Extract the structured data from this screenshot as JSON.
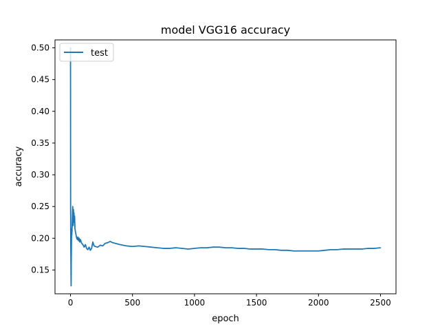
{
  "chart_data": {
    "type": "line",
    "title": "model VGG16 accuracy",
    "xlabel": "epoch",
    "ylabel": "accuracy",
    "xlim": [
      -125,
      2625
    ],
    "ylim": [
      0.1125,
      0.5125
    ],
    "xticks": [
      0,
      500,
      1000,
      1500,
      2000,
      2500
    ],
    "yticks": [
      0.15,
      0.2,
      0.25,
      0.3,
      0.35,
      0.4,
      0.45,
      0.5
    ],
    "ytick_decimals": 2,
    "grid": false,
    "legend_position": "top-left",
    "series": [
      {
        "name": "test",
        "color": "#1f77b4",
        "x": [
          0,
          1,
          2,
          3,
          4,
          5,
          6,
          7,
          8,
          9,
          10,
          12,
          14,
          16,
          18,
          20,
          22,
          24,
          26,
          28,
          30,
          33,
          36,
          40,
          45,
          50,
          55,
          60,
          65,
          70,
          75,
          80,
          90,
          100,
          110,
          120,
          130,
          140,
          150,
          160,
          170,
          180,
          190,
          200,
          220,
          240,
          260,
          280,
          300,
          320,
          340,
          360,
          380,
          400,
          450,
          500,
          550,
          600,
          650,
          700,
          750,
          800,
          850,
          900,
          950,
          1000,
          1050,
          1100,
          1150,
          1200,
          1250,
          1300,
          1350,
          1400,
          1450,
          1500,
          1550,
          1600,
          1650,
          1700,
          1750,
          1800,
          1850,
          1900,
          1950,
          2000,
          2050,
          2100,
          2150,
          2200,
          2250,
          2300,
          2350,
          2400,
          2450,
          2499
        ],
        "y": [
          0.5,
          0.25,
          0.19,
          0.17,
          0.14,
          0.125,
          0.16,
          0.18,
          0.2,
          0.215,
          0.205,
          0.21,
          0.225,
          0.24,
          0.25,
          0.235,
          0.22,
          0.245,
          0.23,
          0.24,
          0.225,
          0.235,
          0.215,
          0.21,
          0.205,
          0.2,
          0.198,
          0.202,
          0.196,
          0.2,
          0.194,
          0.198,
          0.192,
          0.19,
          0.186,
          0.19,
          0.184,
          0.182,
          0.186,
          0.181,
          0.184,
          0.194,
          0.188,
          0.187,
          0.186,
          0.189,
          0.188,
          0.192,
          0.193,
          0.195,
          0.193,
          0.192,
          0.191,
          0.19,
          0.188,
          0.187,
          0.188,
          0.187,
          0.186,
          0.185,
          0.184,
          0.184,
          0.185,
          0.184,
          0.183,
          0.184,
          0.185,
          0.185,
          0.186,
          0.186,
          0.185,
          0.185,
          0.184,
          0.184,
          0.183,
          0.183,
          0.183,
          0.182,
          0.182,
          0.181,
          0.181,
          0.18,
          0.18,
          0.18,
          0.18,
          0.18,
          0.181,
          0.182,
          0.182,
          0.183,
          0.183,
          0.183,
          0.183,
          0.184,
          0.184,
          0.185
        ]
      }
    ]
  }
}
